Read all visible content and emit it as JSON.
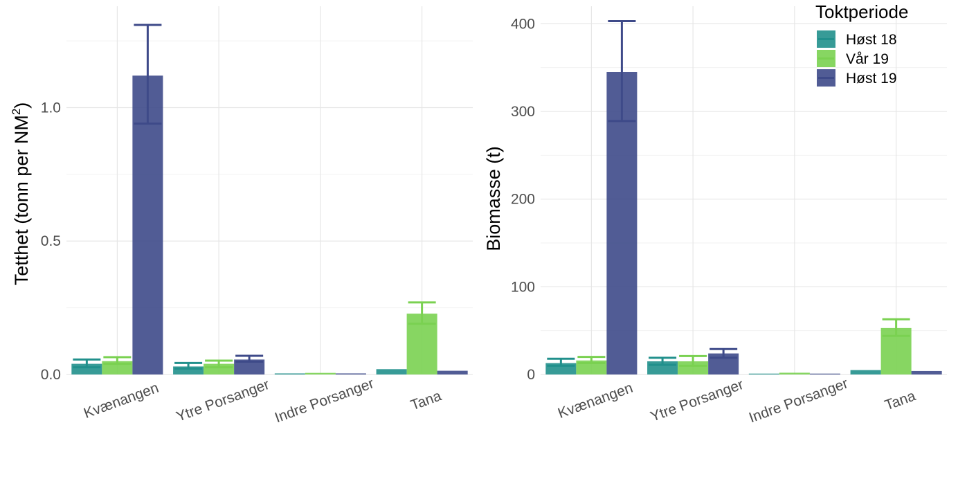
{
  "chart_data": [
    {
      "type": "bar",
      "categories": [
        "Kvænangen",
        "Ytre Porsanger",
        "Indre Porsanger",
        "Tana"
      ],
      "ylabel_main": "Tetthet (tonn per NM",
      "ylabel_sup": "2",
      "ylabel_tail": ")",
      "ylim": [
        0,
        1.38
      ],
      "yticks": [
        0.0,
        0.5,
        1.0
      ],
      "ytick_labels": [
        "0.0",
        "0.5",
        "1.0"
      ],
      "grid": true,
      "series": [
        {
          "name": "Høst 18",
          "color": "#21908C",
          "values": [
            0.04,
            0.03,
            0.004,
            0.02
          ],
          "err_low": [
            0.027,
            0.022,
            0.004,
            0.02
          ],
          "err_high": [
            0.056,
            0.043,
            0.004,
            0.02
          ]
        },
        {
          "name": "Vår 19",
          "color": "#7AD151",
          "values": [
            0.05,
            0.04,
            0.006,
            0.228
          ],
          "err_low": [
            0.04,
            0.027,
            0.006,
            0.19
          ],
          "err_high": [
            0.065,
            0.052,
            0.006,
            0.27
          ]
        },
        {
          "name": "Høst 19",
          "color": "#3E4A89",
          "values": [
            1.12,
            0.056,
            0.004,
            0.014
          ],
          "err_low": [
            0.94,
            0.048,
            0.004,
            0.014
          ],
          "err_high": [
            1.31,
            0.07,
            0.004,
            0.014
          ]
        }
      ]
    },
    {
      "type": "bar",
      "categories": [
        "Kvænangen",
        "Ytre Porsanger",
        "Indre Porsanger",
        "Tana"
      ],
      "ylabel": "Biomasse (t)",
      "ylim": [
        0,
        420
      ],
      "yticks": [
        0,
        100,
        200,
        300,
        400
      ],
      "ytick_labels": [
        "0",
        "100",
        "200",
        "300",
        "400"
      ],
      "grid": true,
      "series": [
        {
          "name": "Høst 18",
          "color": "#21908C",
          "values": [
            13,
            15,
            1,
            5
          ],
          "err_low": [
            10,
            11,
            1,
            5
          ],
          "err_high": [
            18,
            19,
            1,
            5
          ]
        },
        {
          "name": "Vår 19",
          "color": "#7AD151",
          "values": [
            16,
            15,
            2,
            53
          ],
          "err_low": [
            13,
            10,
            2,
            44
          ],
          "err_high": [
            20,
            21,
            2,
            63
          ]
        },
        {
          "name": "Høst 19",
          "color": "#3E4A89",
          "values": [
            345,
            24,
            1,
            4
          ],
          "err_low": [
            289,
            19,
            1,
            4
          ],
          "err_high": [
            403,
            29,
            1,
            4
          ]
        }
      ]
    }
  ],
  "legend": {
    "title": "Toktperiode",
    "placement": "top-right",
    "items": [
      "Høst 18",
      "Vår 19",
      "Høst 19"
    ]
  }
}
